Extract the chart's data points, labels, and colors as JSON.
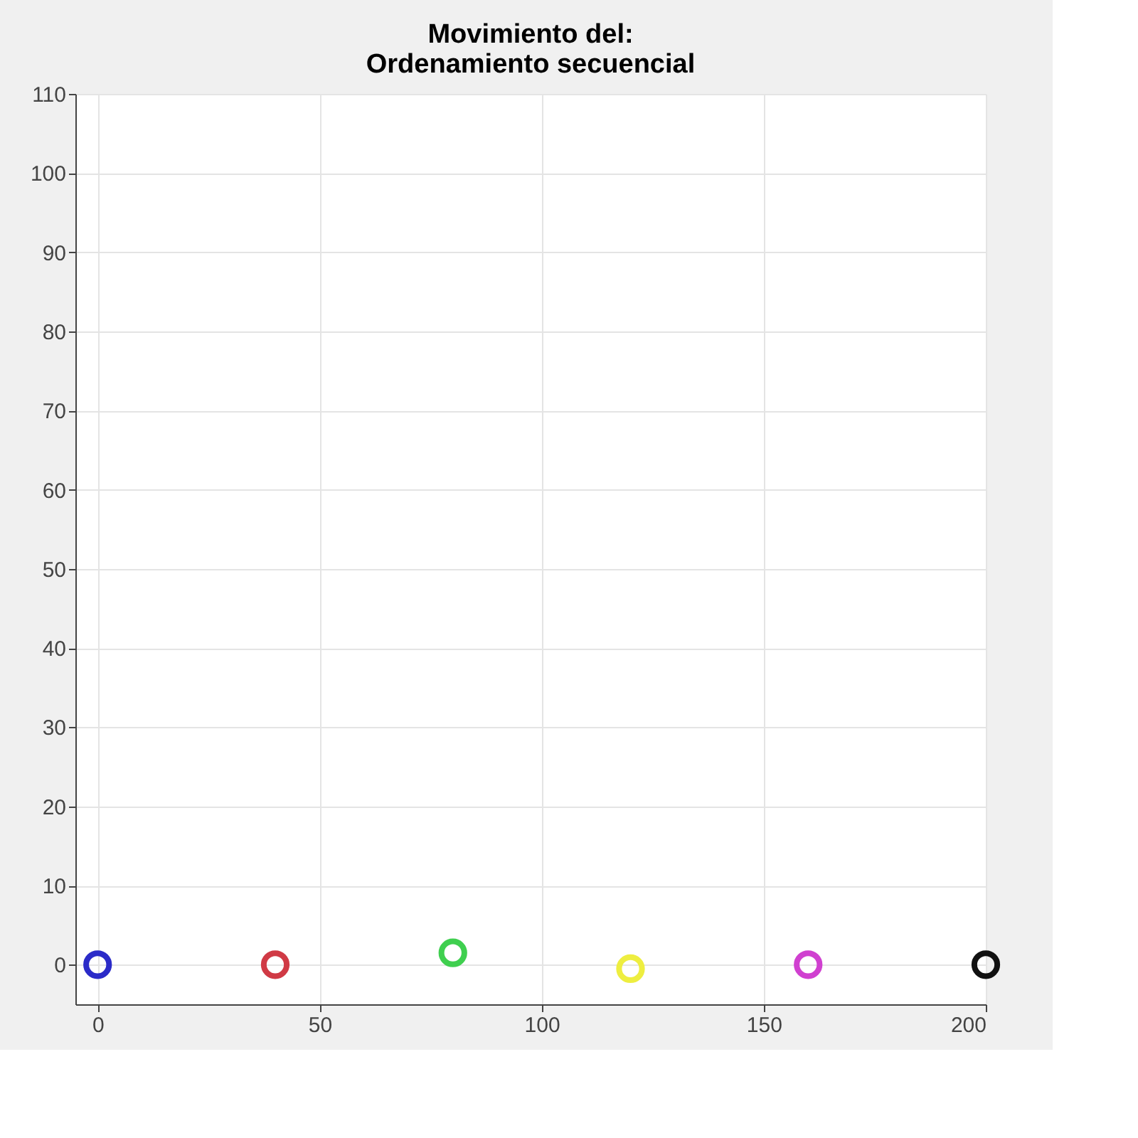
{
  "chart_data": {
    "type": "scatter",
    "title": [
      "Movimiento del:",
      "Ordenamiento secuencial"
    ],
    "marker": "circle",
    "grid": true,
    "series": [
      {
        "color": "#2b2bc8",
        "x": [
          0
        ],
        "values": [
          0
        ]
      },
      {
        "color": "#d03a45",
        "x": [
          40
        ],
        "values": [
          0
        ]
      },
      {
        "color": "#3fcf4f",
        "x": [
          80
        ],
        "values": [
          1.5
        ]
      },
      {
        "color": "#eeee40",
        "x": [
          120
        ],
        "values": [
          -0.5
        ]
      },
      {
        "color": "#d040d0",
        "x": [
          160
        ],
        "values": [
          0
        ]
      },
      {
        "color": "#111111",
        "x": [
          200
        ],
        "values": [
          0
        ]
      }
    ],
    "xlim": [
      -5,
      200
    ],
    "xticks": [
      0,
      50,
      100,
      150,
      200
    ],
    "ylim": [
      -5,
      110
    ],
    "yticks": [
      0,
      10,
      20,
      30,
      40,
      50,
      60,
      70,
      80,
      90,
      100,
      110
    ]
  }
}
